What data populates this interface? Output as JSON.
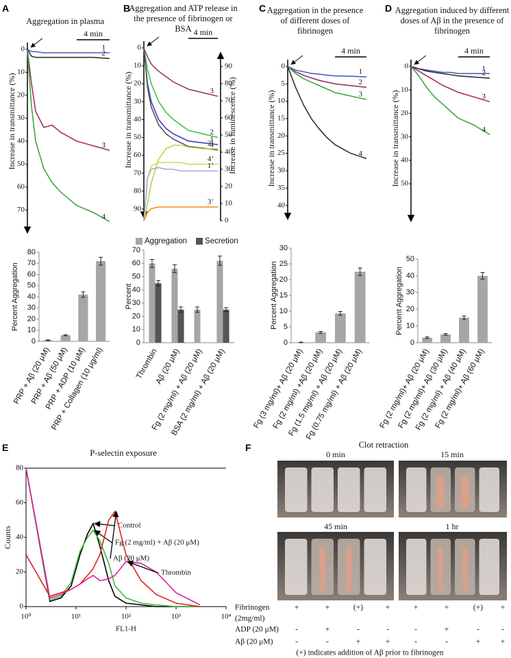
{
  "chart_data": [
    {
      "type": "line",
      "panel": "A",
      "title": "Aggregation in plasma",
      "ylabel": "Increase in transmittance (%)",
      "scale_bar": {
        "value": 4,
        "label": "4 min"
      },
      "x": [
        0,
        0.5,
        1,
        2,
        3,
        4,
        5,
        6,
        8,
        10
      ],
      "xlim": [
        0,
        10
      ],
      "ylim": [
        80,
        0
      ],
      "yticks": [
        0,
        10,
        20,
        30,
        40,
        50,
        60,
        70
      ],
      "series": [
        {
          "name": "1",
          "color": "#4a5fc1",
          "values": [
            0,
            1,
            1,
            1.5,
            1.5,
            1.5,
            1.5,
            1.5,
            1.5,
            1.5
          ]
        },
        {
          "name": "2",
          "color": "#333333",
          "values": [
            0,
            3,
            3.5,
            3.5,
            3.5,
            3.5,
            3.5,
            3.5,
            3.5,
            4
          ]
        },
        {
          "name": "3",
          "color": "#a0306a",
          "values": [
            0,
            15,
            27,
            34,
            33,
            36,
            38,
            40,
            42,
            44
          ]
        },
        {
          "name": "4",
          "color": "#3ca83c",
          "values": [
            0,
            25,
            40,
            52,
            58,
            62,
            65,
            68,
            71,
            75
          ]
        }
      ]
    },
    {
      "type": "bar",
      "ylabel": "Percent Aggregation",
      "categories": [
        "PRP + Aβ (20 μM)",
        "PRP + Aβ (50 μM)",
        "PRP + ADP (10 μM)",
        "PRP + Collagen (10 μg/ml)"
      ],
      "values": [
        1,
        5.5,
        42,
        72
      ],
      "errors": [
        0.3,
        0.5,
        2.5,
        3.5
      ],
      "color": "#a6a6a6",
      "ylim": [
        0,
        80
      ],
      "yticks": [
        0,
        10,
        20,
        30,
        40,
        50,
        60,
        70,
        80
      ]
    },
    {
      "type": "line",
      "panel": "B",
      "title": "Aggregation and ATP release in the presence of fibrinogen or BSA",
      "ylabel": "Increase in transmittance (%)",
      "y2label": "Increase in luminescence (%)",
      "scale_bar": {
        "value": 4,
        "label": "4 min"
      },
      "x": [
        0,
        0.5,
        1,
        2,
        3,
        4,
        5,
        6,
        8,
        10
      ],
      "xlim": [
        0,
        10
      ],
      "ylim": [
        95,
        0
      ],
      "yticks": [
        0,
        10,
        20,
        30,
        40,
        50,
        60,
        70,
        80,
        90
      ],
      "y2lim": [
        0,
        95
      ],
      "y2ticks": [
        0,
        10,
        20,
        30,
        40,
        50,
        60,
        70,
        80,
        90
      ],
      "series": [
        {
          "name": "3",
          "color": "#9b3a6a",
          "values": [
            0,
            5,
            9,
            13,
            16,
            19,
            21,
            23,
            25,
            27
          ]
        },
        {
          "name": "2",
          "color": "#4cbf4c",
          "values": [
            0,
            12,
            20,
            30,
            36,
            40,
            43,
            46,
            48,
            50
          ]
        },
        {
          "name": "1",
          "color": "#4040c0",
          "values": [
            0,
            20,
            30,
            40,
            45,
            48,
            50,
            52,
            53,
            54
          ]
        },
        {
          "name": "4",
          "color": "#555555",
          "values": [
            0,
            22,
            33,
            43,
            48,
            51,
            53,
            55,
            56,
            57
          ]
        },
        {
          "name": "2’",
          "color": "#b8d64a",
          "axis": "y2",
          "values": [
            0,
            10,
            22,
            36,
            42,
            44,
            44,
            43,
            42,
            42
          ]
        },
        {
          "name": "4’",
          "color": "#d6d860",
          "axis": "y2",
          "values": [
            0,
            25,
            32,
            34,
            34,
            34,
            34,
            33,
            33,
            33
          ]
        },
        {
          "name": "1’",
          "color": "#a8a8d8",
          "axis": "y2",
          "values": [
            0,
            25,
            30,
            31,
            30,
            30,
            29,
            29,
            29,
            29
          ]
        },
        {
          "name": "3’",
          "color": "#f08a20",
          "axis": "y2",
          "values": [
            0,
            5,
            7,
            8,
            8,
            8,
            8,
            8,
            8,
            8
          ]
        }
      ]
    },
    {
      "type": "bar",
      "ylabel": "Percent",
      "categories": [
        "Thrombin",
        "Aβ (20 μM)",
        "Fg (2 mg/ml) + Aβ (20 μM)",
        "BSA (2 mg/ml) + Aβ (20 μM)"
      ],
      "series": [
        {
          "name": "Aggregation",
          "color": "#a6a6a6",
          "values": [
            60,
            56,
            25,
            62
          ],
          "errors": [
            3,
            3,
            2,
            3.5
          ]
        },
        {
          "name": "Secretion",
          "color": "#555555",
          "values": [
            45,
            25,
            null,
            25
          ],
          "errors": [
            2,
            2,
            null,
            1.5
          ]
        }
      ],
      "ylim": [
        0,
        70
      ],
      "yticks": [
        0,
        10,
        20,
        30,
        40,
        50,
        60,
        70
      ]
    },
    {
      "type": "line",
      "panel": "C",
      "title": "Aggregation in the presence of different doses of fibrinogen",
      "ylabel": "Increase in transmittance (%)",
      "scale_bar": {
        "value": 4,
        "label": "4 min"
      },
      "x": [
        0,
        0.5,
        1,
        2,
        3,
        4,
        5,
        6,
        8,
        10
      ],
      "xlim": [
        0,
        10
      ],
      "ylim": [
        44,
        0
      ],
      "yticks": [
        0,
        5,
        10,
        15,
        20,
        25,
        30,
        35,
        40
      ],
      "series": [
        {
          "name": "1",
          "color": "#4a5fc1",
          "values": [
            0,
            0.5,
            1,
            1.5,
            2,
            2.2,
            2.5,
            2.7,
            2.8,
            3
          ]
        },
        {
          "name": "2",
          "color": "#a0306a",
          "values": [
            0,
            0.8,
            1.5,
            2.5,
            3.3,
            4,
            4.5,
            5,
            5.5,
            6
          ]
        },
        {
          "name": "3",
          "color": "#3ca83c",
          "values": [
            0,
            1,
            2,
            3.5,
            4.5,
            5.5,
            6.5,
            7.5,
            8.5,
            9.5
          ]
        },
        {
          "name": "4",
          "color": "#333333",
          "values": [
            0,
            3,
            6,
            11,
            15,
            18,
            20.5,
            22.5,
            25,
            26.5
          ]
        }
      ]
    },
    {
      "type": "bar",
      "ylabel": "Percent Aggregation",
      "categories": [
        "Fg (3 mg/ml)+ Aβ (20 μM)",
        "Fg (2 mg/ml) +Aβ (20 μM)",
        "Fg (1.5 mg/ml) + Aβ (20 μM)",
        "Fg (0.75 mg/ml) + Aβ (20 μM)"
      ],
      "values": [
        0.1,
        3.3,
        9.3,
        22.5
      ],
      "errors": [
        0.1,
        0.3,
        0.6,
        1.2
      ],
      "color": "#a6a6a6",
      "ylim": [
        0,
        30
      ],
      "yticks": [
        0,
        5,
        10,
        15,
        20,
        25,
        30
      ]
    },
    {
      "type": "line",
      "panel": "D",
      "title": "Aggregation induced by different doses of Aβ in the presence of fibrinogen",
      "ylabel": "Increase in transmittance (%)",
      "scale_bar": {
        "value": 4,
        "label": "4 min"
      },
      "x": [
        0,
        0.5,
        1,
        2,
        3,
        4,
        5,
        6,
        8,
        10
      ],
      "xlim": [
        0,
        10
      ],
      "ylim": [
        66,
        0
      ],
      "yticks": [
        0,
        10,
        20,
        30,
        40,
        50
      ],
      "series": [
        {
          "name": "1",
          "color": "#4a5fc1",
          "values": [
            0,
            0.5,
            1,
            1.5,
            2,
            2.5,
            2.5,
            3,
            3,
            3
          ]
        },
        {
          "name": "2",
          "color": "#333333",
          "values": [
            0,
            0.5,
            1,
            2,
            2.5,
            3,
            3.5,
            4,
            4.5,
            5
          ]
        },
        {
          "name": "3",
          "color": "#a0306a",
          "values": [
            0,
            1,
            2,
            4,
            6,
            8,
            9.5,
            11,
            13,
            15
          ]
        },
        {
          "name": "4",
          "color": "#3ca83c",
          "values": [
            0,
            2,
            4,
            9,
            13,
            16,
            19,
            22,
            25,
            29
          ]
        }
      ]
    },
    {
      "type": "bar",
      "ylabel": "Percent Aggregation",
      "categories": [
        "Fg (2 mg/ml)+ Aβ (20 μM)",
        "Fg (2 mg/ml)+ Aβ (30 μM)",
        "Fg (2 mg/ml) + Aβ (40 μM)",
        "Fg (2 mg/ml)+ Aβ (60 μM)"
      ],
      "values": [
        3,
        5,
        15,
        40
      ],
      "errors": [
        0.5,
        0.5,
        1,
        2
      ],
      "color": "#a6a6a6",
      "ylim": [
        0,
        50
      ],
      "yticks": [
        0,
        10,
        20,
        30,
        40,
        50
      ]
    },
    {
      "type": "line",
      "panel": "E",
      "title": "P-selectin exposure",
      "xlabel": "FL1-H",
      "ylabel": "Counts",
      "xscale": "log",
      "x": [
        1,
        3,
        5,
        8,
        12,
        17,
        22,
        30,
        45,
        60,
        100,
        200,
        400,
        1000,
        3000
      ],
      "xlim": [
        1,
        10000
      ],
      "xticks": [
        {
          "value": 1,
          "label": "10⁰"
        },
        {
          "value": 10,
          "label": "10¹"
        },
        {
          "value": 100,
          "label": "10²"
        },
        {
          "value": 1000,
          "label": "10³"
        },
        {
          "value": 10000,
          "label": "10⁴"
        }
      ],
      "ylim": [
        0,
        80
      ],
      "yticks": [
        0,
        20,
        40,
        60,
        80
      ],
      "series": [
        {
          "name": "Control",
          "color": "#000000",
          "values": [
            80,
            3,
            5,
            12,
            30,
            42,
            48,
            35,
            15,
            6,
            2,
            1,
            0,
            0,
            0
          ]
        },
        {
          "name": "Fg (2 mg/ml) + Aβ (20 μM)",
          "color": "#3cb83c",
          "values": [
            80,
            4,
            6,
            14,
            32,
            40,
            44,
            38,
            25,
            12,
            5,
            2,
            1,
            0,
            0
          ]
        },
        {
          "name": "Aβ (20 μM)",
          "color": "#e02020",
          "values": [
            30,
            6,
            8,
            10,
            13,
            18,
            22,
            30,
            50,
            55,
            30,
            15,
            7,
            2,
            0
          ]
        },
        {
          "name": "Thrombin",
          "color": "#e0209a",
          "values": [
            80,
            5,
            7,
            10,
            13,
            16,
            18,
            15,
            16,
            18,
            26,
            25,
            20,
            8,
            1
          ]
        }
      ]
    }
  ],
  "clot_retraction": {
    "panel": "F",
    "title": "Clot retraction",
    "times": [
      "0 min",
      "15 min",
      "45 min",
      "1 hr"
    ],
    "rows": [
      {
        "label": [
          "Fibrinogen",
          "(2mg/ml)"
        ],
        "values": [
          "+",
          "+",
          "(+)",
          "+",
          "+",
          "+",
          "(+)",
          "+"
        ]
      },
      {
        "label": [
          "ADP (20 μM)"
        ],
        "values": [
          "-",
          "+",
          "-",
          "-",
          "-",
          "+",
          "-",
          "-"
        ]
      },
      {
        "label": [
          "Aβ (20 μM)"
        ],
        "values": [
          "-",
          "-",
          "+",
          "+",
          "-",
          "-",
          "+",
          "+"
        ]
      }
    ],
    "note": "(+) indicates addition of Aβ prior to fibrinogen"
  }
}
